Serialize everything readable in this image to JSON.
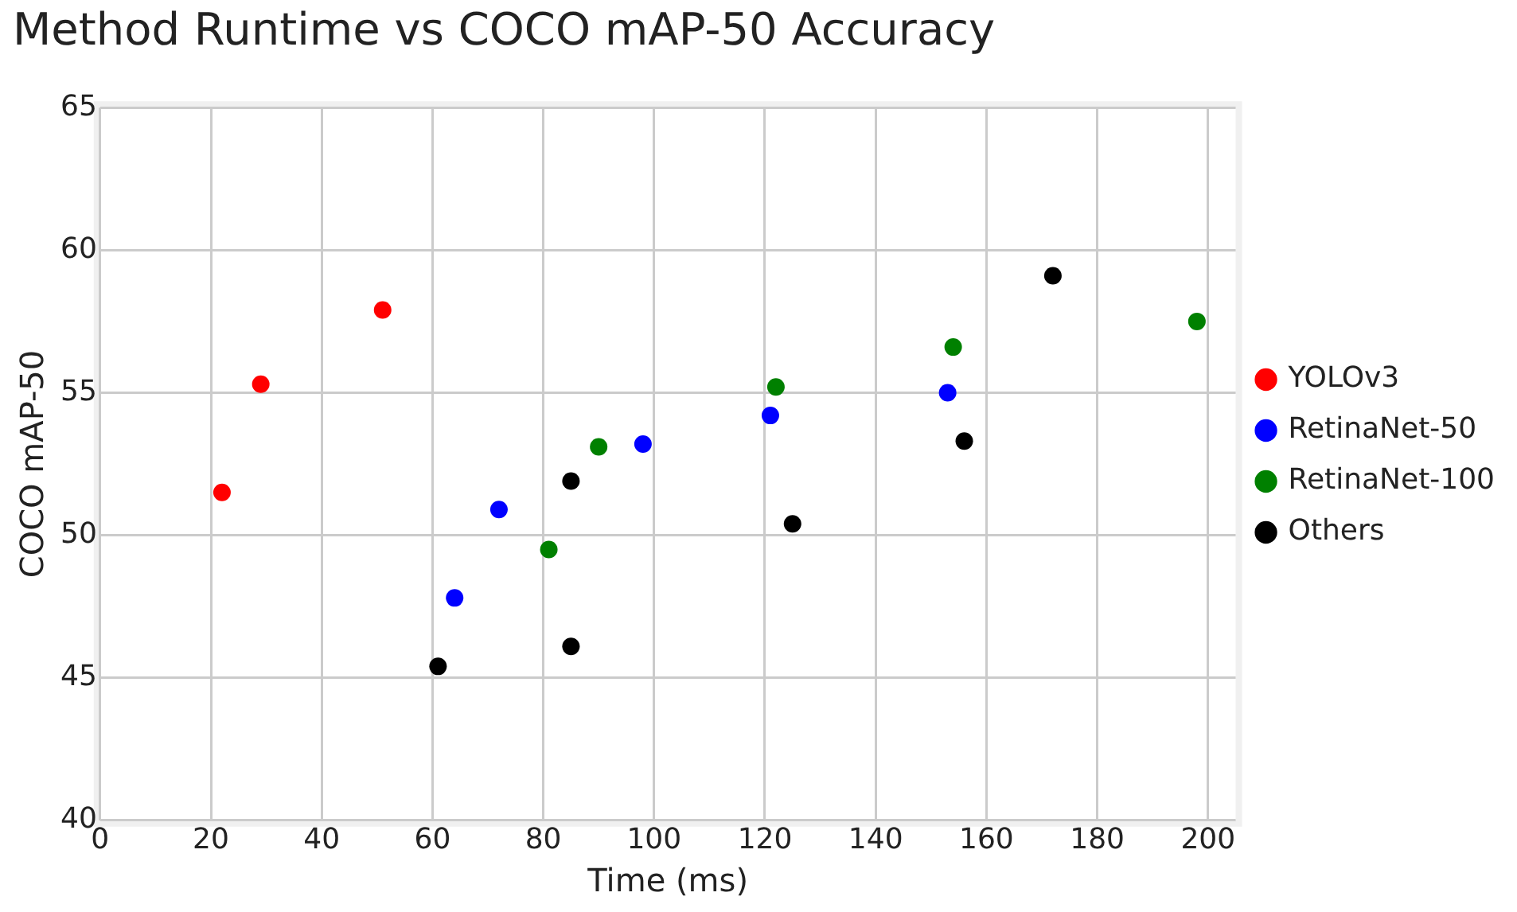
{
  "chart_data": {
    "type": "scatter",
    "title": "Method Runtime vs COCO mAP-50 Accuracy",
    "xlabel": "Time (ms)",
    "ylabel": "COCO mAP-50",
    "xlim": [
      0,
      205
    ],
    "xticks": [
      0,
      20,
      40,
      60,
      80,
      100,
      120,
      140,
      160,
      180,
      200
    ],
    "ylim": [
      40,
      65
    ],
    "yticks": [
      40,
      45,
      50,
      55,
      60,
      65
    ],
    "grid": true,
    "legend": "right",
    "marker": "circle",
    "series": [
      {
        "name": "YOLOv3",
        "color": "#ff0000",
        "x": [
          22,
          29,
          51
        ],
        "values": [
          51.5,
          55.3,
          57.9
        ]
      },
      {
        "name": "RetinaNet-50",
        "color": "#0000ff",
        "x": [
          64,
          72,
          98,
          121,
          153
        ],
        "values": [
          47.8,
          50.9,
          53.2,
          54.2,
          55.0
        ]
      },
      {
        "name": "RetinaNet-100",
        "color": "#008000",
        "x": [
          81,
          90,
          122,
          154,
          198
        ],
        "values": [
          49.5,
          53.1,
          55.2,
          56.6,
          57.5
        ]
      },
      {
        "name": "Others",
        "color": "#000000",
        "x": [
          61,
          85,
          85,
          125,
          156,
          172
        ],
        "values": [
          45.4,
          46.1,
          51.9,
          50.4,
          53.3,
          59.1
        ]
      }
    ]
  }
}
